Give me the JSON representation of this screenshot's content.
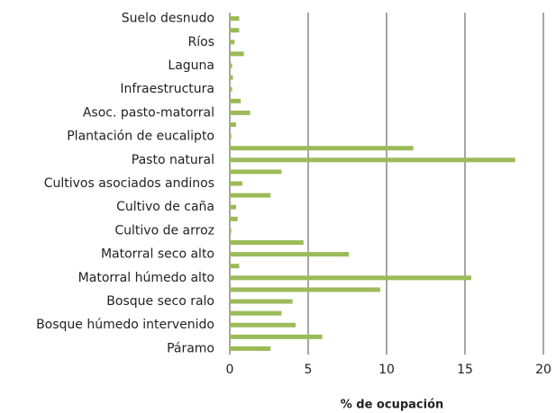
{
  "chart_data": {
    "type": "barh",
    "categories": [
      "Suelo desnudo",
      null,
      "Ríos",
      null,
      "Laguna",
      null,
      "Infraestructura",
      null,
      "Asoc. pasto-matorral",
      null,
      "Plantación de eucalipto",
      null,
      "Pasto natural",
      null,
      "Cultivos asociados andinos",
      null,
      "Cultivo de caña",
      null,
      "Cultivo de arroz",
      null,
      "Matorral seco alto",
      null,
      "Matorral húmedo alto",
      null,
      "Bosque seco ralo",
      null,
      "Bosque húmedo intervenido",
      null,
      "Páramo"
    ],
    "values": [
      0.6,
      0.6,
      0.3,
      0.9,
      0.15,
      0.2,
      0.15,
      0.7,
      1.3,
      0.4,
      0.1,
      11.7,
      18.2,
      3.3,
      0.8,
      2.6,
      0.4,
      0.5,
      0.1,
      4.7,
      7.6,
      0.6,
      15.4,
      9.6,
      4.0,
      3.3,
      4.2,
      5.9,
      2.6
    ],
    "color": "#9bbb59",
    "x_label": "% de ocupación",
    "xlim": [
      0,
      20
    ],
    "xticks": [
      0,
      5,
      10,
      15,
      20
    ],
    "grid": true
  }
}
